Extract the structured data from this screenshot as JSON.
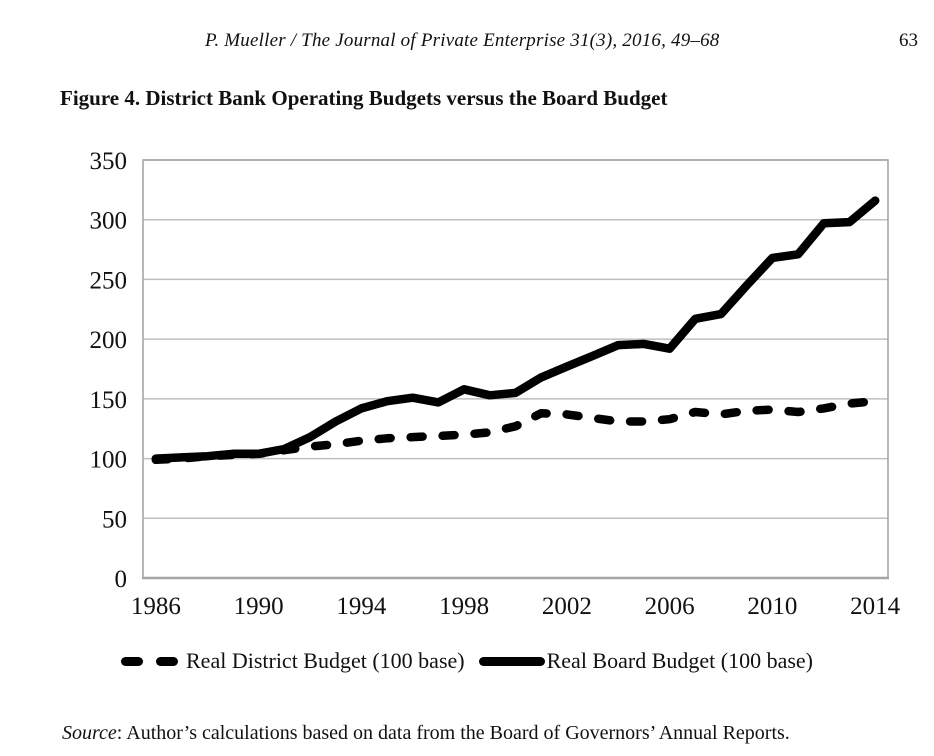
{
  "page": {
    "running_header": "P. Mueller / The Journal of Private Enterprise 31(3), 2016, 49–68",
    "page_number": "63",
    "figure_title": "Figure 4. District Bank Operating Budgets versus the Board Budget",
    "source_label": "Source",
    "source_text": ": Author’s calculations based on data from the Board of Governors’ Annual Reports."
  },
  "legend": {
    "district_label": "Real District Budget (100 base)",
    "board_label": "Real Board Budget (100 base)"
  },
  "colors": {
    "line": "#000000",
    "gridline": "#bfbfbf",
    "plot_border": "#a6a6a6",
    "text": "#111111"
  },
  "chart_data": {
    "type": "line",
    "title": "Figure 4. District Bank Operating Budgets versus the Board Budget",
    "x": [
      1986,
      1987,
      1988,
      1989,
      1990,
      1991,
      1992,
      1993,
      1994,
      1995,
      1996,
      1997,
      1998,
      1999,
      2000,
      2001,
      2002,
      2003,
      2004,
      2005,
      2006,
      2007,
      2008,
      2009,
      2010,
      2011,
      2012,
      2013,
      2014
    ],
    "xtick_labels": [
      "1986",
      "1990",
      "1994",
      "1998",
      "2002",
      "2006",
      "2010",
      "2014"
    ],
    "xlabel": "",
    "ylabel": "",
    "ylim": [
      0,
      350
    ],
    "ytick_step": 50,
    "ytick_labels": [
      "0",
      "50",
      "100",
      "150",
      "200",
      "250",
      "300",
      "350"
    ],
    "grid": "horizontal",
    "legend_position": "bottom",
    "series": [
      {
        "name": "Real District Budget (100 base)",
        "style": "dashed",
        "values": [
          99,
          100,
          102,
          103,
          104,
          107,
          110,
          112,
          115,
          117,
          118,
          119,
          120,
          122,
          127,
          138,
          137,
          134,
          131,
          131,
          133,
          139,
          137,
          140,
          141,
          139,
          142,
          146,
          148
        ]
      },
      {
        "name": "Real Board Budget (100 base)",
        "style": "solid",
        "values": [
          100,
          101,
          102,
          104,
          104,
          108,
          118,
          131,
          142,
          148,
          151,
          147,
          158,
          153,
          155,
          168,
          177,
          186,
          195,
          196,
          192,
          217,
          221,
          245,
          268,
          271,
          297,
          298,
          316
        ]
      }
    ]
  }
}
